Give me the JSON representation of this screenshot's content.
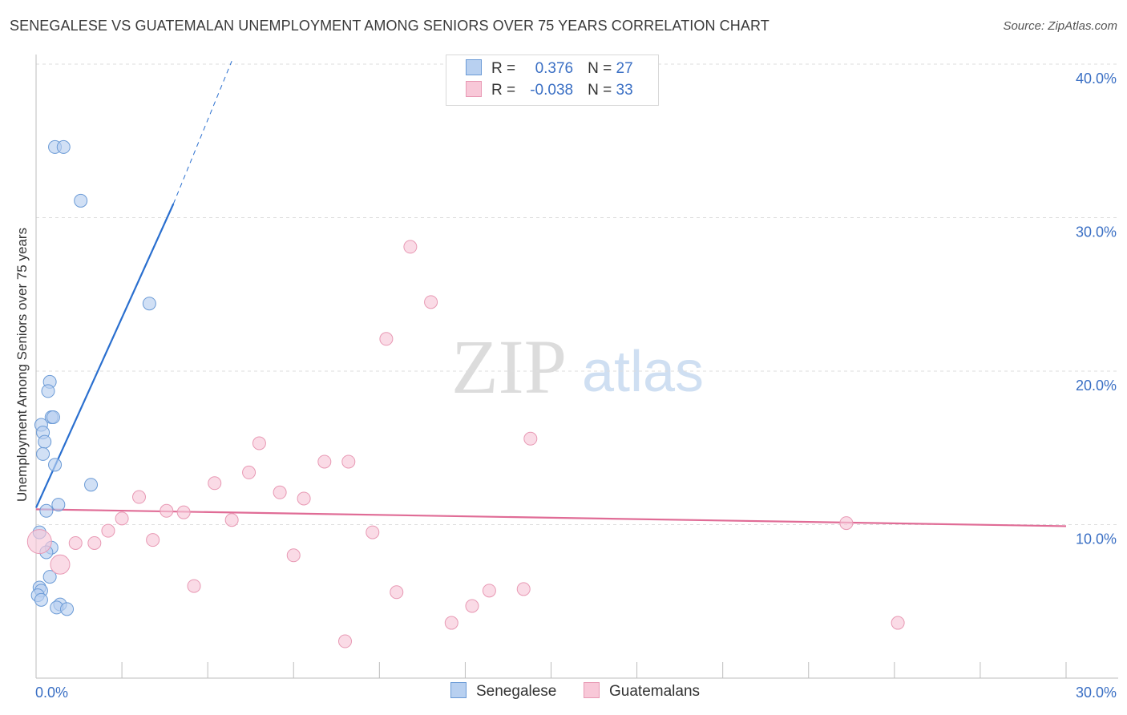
{
  "title": "SENEGALESE VS GUATEMALAN UNEMPLOYMENT AMONG SENIORS OVER 75 YEARS CORRELATION CHART",
  "source": "Source: ZipAtlas.com",
  "watermark": {
    "zip": "ZIP",
    "atlas": "atlas"
  },
  "colors": {
    "senegalese_fill": "#b8d0f0",
    "senegalese_stroke": "#6a9ad6",
    "senegalese_line": "#2a6fcf",
    "guatemalan_fill": "#f8c8d8",
    "guatemalan_stroke": "#e899b4",
    "guatemalan_line": "#e06c96",
    "axis_label": "#3a6fc4",
    "grid": "#dedede"
  },
  "legend": {
    "rows": [
      {
        "r_label": "R =",
        "r_value": "0.376",
        "n_label": "N =",
        "n_value": "27"
      },
      {
        "r_label": "R =",
        "r_value": "-0.038",
        "n_label": "N =",
        "n_value": "33"
      }
    ]
  },
  "bottom_legend": {
    "senegalese": "Senegalese",
    "guatemalans": "Guatemalans"
  },
  "chart_data": {
    "type": "scatter",
    "title": "SENEGALESE VS GUATEMALAN UNEMPLOYMENT AMONG SENIORS OVER 75 YEARS CORRELATION CHART",
    "xlabel": "",
    "ylabel": "Unemployment Among Seniors over 75 years",
    "xlim": [
      0,
      30
    ],
    "ylim": [
      0,
      40
    ],
    "x_tick_labels": [
      "0.0%",
      "30.0%"
    ],
    "y_ticks": [
      10,
      20,
      30,
      40
    ],
    "y_tick_labels": [
      "10.0%",
      "20.0%",
      "30.0%",
      "40.0%"
    ],
    "grid": true,
    "legend_position": "top-center",
    "series": [
      {
        "name": "Senegalese",
        "r": 0.376,
        "n": 27,
        "trend": {
          "x0": 0.0,
          "y0": 11.1,
          "x1": 4.0,
          "y1": 30.9,
          "dash_to_x": 5.7,
          "dash_to_y": 40.2
        },
        "points": [
          {
            "x": 0.55,
            "y": 34.6
          },
          {
            "x": 0.8,
            "y": 34.6
          },
          {
            "x": 1.3,
            "y": 31.1
          },
          {
            "x": 3.3,
            "y": 24.4
          },
          {
            "x": 0.4,
            "y": 19.3
          },
          {
            "x": 0.35,
            "y": 18.7
          },
          {
            "x": 0.45,
            "y": 17.0
          },
          {
            "x": 0.5,
            "y": 17.0
          },
          {
            "x": 0.15,
            "y": 16.5
          },
          {
            "x": 0.2,
            "y": 16.0
          },
          {
            "x": 0.25,
            "y": 15.4
          },
          {
            "x": 0.2,
            "y": 14.6
          },
          {
            "x": 0.55,
            "y": 13.9
          },
          {
            "x": 1.6,
            "y": 12.6
          },
          {
            "x": 0.65,
            "y": 11.3
          },
          {
            "x": 0.3,
            "y": 10.9
          },
          {
            "x": 0.1,
            "y": 9.5
          },
          {
            "x": 0.45,
            "y": 8.5
          },
          {
            "x": 0.3,
            "y": 8.2
          },
          {
            "x": 0.4,
            "y": 6.6
          },
          {
            "x": 0.1,
            "y": 5.9
          },
          {
            "x": 0.15,
            "y": 5.7
          },
          {
            "x": 0.05,
            "y": 5.4
          },
          {
            "x": 0.15,
            "y": 5.1
          },
          {
            "x": 0.7,
            "y": 4.8
          },
          {
            "x": 0.6,
            "y": 4.6
          },
          {
            "x": 0.9,
            "y": 4.5
          }
        ]
      },
      {
        "name": "Guatemalans",
        "r": -0.038,
        "n": 33,
        "trend": {
          "x0": 0.0,
          "y0": 11.0,
          "x1": 30.0,
          "y1": 9.9
        },
        "points": [
          {
            "x": 10.9,
            "y": 28.1
          },
          {
            "x": 11.5,
            "y": 24.5
          },
          {
            "x": 10.2,
            "y": 22.1
          },
          {
            "x": 14.4,
            "y": 15.6
          },
          {
            "x": 6.5,
            "y": 15.3
          },
          {
            "x": 8.4,
            "y": 14.1
          },
          {
            "x": 9.1,
            "y": 14.1
          },
          {
            "x": 6.2,
            "y": 13.4
          },
          {
            "x": 5.2,
            "y": 12.7
          },
          {
            "x": 7.1,
            "y": 12.1
          },
          {
            "x": 3.0,
            "y": 11.8
          },
          {
            "x": 7.8,
            "y": 11.7
          },
          {
            "x": 3.8,
            "y": 10.9
          },
          {
            "x": 4.3,
            "y": 10.8
          },
          {
            "x": 2.5,
            "y": 10.4
          },
          {
            "x": 5.7,
            "y": 10.3
          },
          {
            "x": 23.6,
            "y": 10.1
          },
          {
            "x": 2.1,
            "y": 9.6
          },
          {
            "x": 9.8,
            "y": 9.5
          },
          {
            "x": 3.4,
            "y": 9.0
          },
          {
            "x": 0.1,
            "y": 8.9
          },
          {
            "x": 1.15,
            "y": 8.8
          },
          {
            "x": 1.7,
            "y": 8.8
          },
          {
            "x": 7.5,
            "y": 8.0
          },
          {
            "x": 0.7,
            "y": 7.4
          },
          {
            "x": 4.6,
            "y": 6.0
          },
          {
            "x": 14.2,
            "y": 5.8
          },
          {
            "x": 13.2,
            "y": 5.7
          },
          {
            "x": 10.5,
            "y": 5.6
          },
          {
            "x": 12.7,
            "y": 4.7
          },
          {
            "x": 12.1,
            "y": 3.6
          },
          {
            "x": 25.1,
            "y": 3.6
          },
          {
            "x": 9.0,
            "y": 2.4
          }
        ]
      }
    ]
  }
}
